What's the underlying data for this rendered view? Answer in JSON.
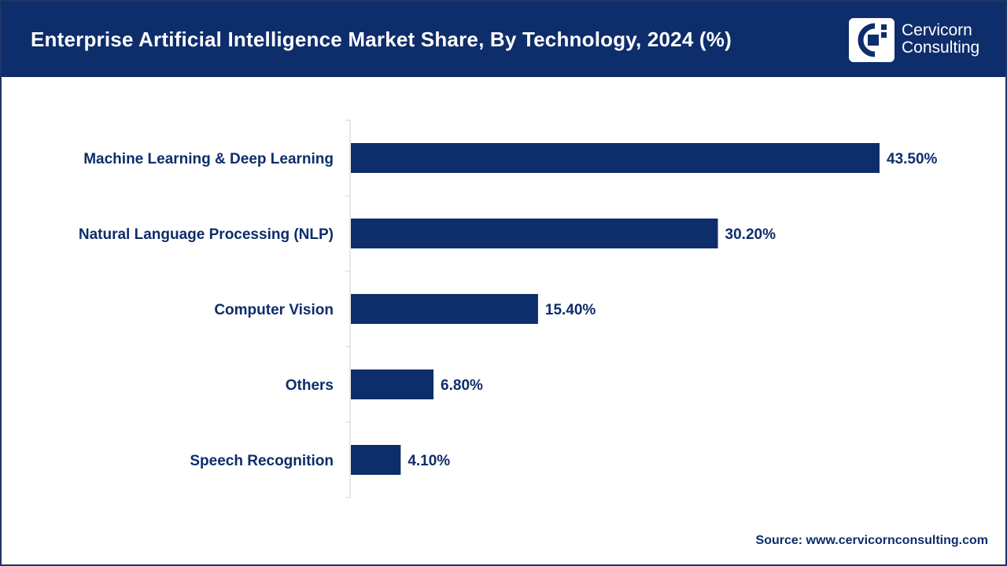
{
  "header": {
    "title": "Enterprise Artificial Intelligence Market Share, By Technology, 2024 (%)",
    "brand_line1": "Cervicorn",
    "brand_line2": "Consulting"
  },
  "footer": {
    "source": "Source: www.cervicornconsulting.com"
  },
  "colors": {
    "header_bg": "#0e2d6b",
    "bar": "#0e2d6b",
    "text": "#0e2d6b"
  },
  "chart_data": {
    "type": "bar",
    "orientation": "horizontal",
    "title": "Enterprise Artificial Intelligence Market Share, By Technology, 2024 (%)",
    "categories": [
      "Machine Learning & Deep Learning",
      "Natural Language Processing (NLP)",
      "Computer Vision",
      "Others",
      "Speech Recognition"
    ],
    "values": [
      43.5,
      30.2,
      15.4,
      6.8,
      4.1
    ],
    "value_labels": [
      "43.50%",
      "30.20%",
      "15.40%",
      "6.80%",
      "4.10%"
    ],
    "xlabel": "",
    "ylabel": "",
    "xlim": [
      0,
      43.5
    ],
    "grid": false,
    "legend": "none"
  }
}
